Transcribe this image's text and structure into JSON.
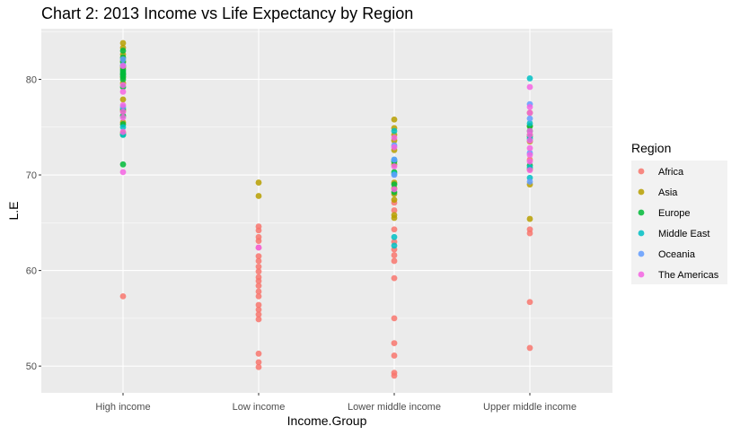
{
  "chart_data": {
    "type": "scatter",
    "title": "Chart 2: 2013 Income vs Life Expectancy by Region",
    "xlabel": "Income.Group",
    "ylabel": "L.E",
    "categories": [
      "High income",
      "Low income",
      "Lower middle income",
      "Upper middle income"
    ],
    "yticks": [
      50,
      60,
      70,
      80
    ],
    "ylim": [
      47.2,
      85.3
    ],
    "grid": true,
    "legend": {
      "title": "Region",
      "placement": "right"
    },
    "series": [
      {
        "name": "Africa",
        "color": "#F8766D",
        "points": [
          [
            "High income",
            57.3
          ],
          [
            "Low income",
            64.6
          ],
          [
            "Low income",
            64.2
          ],
          [
            "Low income",
            63.5
          ],
          [
            "Low income",
            63.1
          ],
          [
            "Low income",
            62.4
          ],
          [
            "Low income",
            61.5
          ],
          [
            "Low income",
            61.0
          ],
          [
            "Low income",
            60.4
          ],
          [
            "Low income",
            59.9
          ],
          [
            "Low income",
            59.3
          ],
          [
            "Low income",
            58.9
          ],
          [
            "Low income",
            58.4
          ],
          [
            "Low income",
            57.8
          ],
          [
            "Low income",
            57.3
          ],
          [
            "Low income",
            56.4
          ],
          [
            "Low income",
            55.9
          ],
          [
            "Low income",
            55.4
          ],
          [
            "Low income",
            54.9
          ],
          [
            "Low income",
            51.3
          ],
          [
            "Low income",
            50.4
          ],
          [
            "Low income",
            49.9
          ],
          [
            "Lower middle income",
            67.1
          ],
          [
            "Lower middle income",
            66.3
          ],
          [
            "Lower middle income",
            64.3
          ],
          [
            "Lower middle income",
            63.0
          ],
          [
            "Lower middle income",
            62.2
          ],
          [
            "Lower middle income",
            61.6
          ],
          [
            "Lower middle income",
            61.0
          ],
          [
            "Lower middle income",
            59.2
          ],
          [
            "Lower middle income",
            55.0
          ],
          [
            "Lower middle income",
            52.4
          ],
          [
            "Lower middle income",
            51.1
          ],
          [
            "Lower middle income",
            49.3
          ],
          [
            "Lower middle income",
            49.0
          ],
          [
            "Upper middle income",
            71.6
          ],
          [
            "Upper middle income",
            64.3
          ],
          [
            "Upper middle income",
            63.9
          ],
          [
            "Upper middle income",
            56.7
          ],
          [
            "Upper middle income",
            51.9
          ]
        ]
      },
      {
        "name": "Asia",
        "color": "#B79F00",
        "points": [
          [
            "High income",
            83.8
          ],
          [
            "High income",
            83.3
          ],
          [
            "High income",
            82.6
          ],
          [
            "High income",
            81.9
          ],
          [
            "High income",
            81.2
          ],
          [
            "High income",
            80.2
          ],
          [
            "High income",
            79.6
          ],
          [
            "High income",
            77.9
          ],
          [
            "High income",
            76.7
          ],
          [
            "High income",
            75.5
          ],
          [
            "High income",
            74.4
          ],
          [
            "Low income",
            69.2
          ],
          [
            "Low income",
            67.8
          ],
          [
            "Lower middle income",
            75.8
          ],
          [
            "Lower middle income",
            74.9
          ],
          [
            "Lower middle income",
            74.2
          ],
          [
            "Lower middle income",
            73.6
          ],
          [
            "Lower middle income",
            72.6
          ],
          [
            "Lower middle income",
            71.1
          ],
          [
            "Lower middle income",
            69.2
          ],
          [
            "Lower middle income",
            68.6
          ],
          [
            "Lower middle income",
            68.0
          ],
          [
            "Lower middle income",
            67.4
          ],
          [
            "Lower middle income",
            65.8
          ],
          [
            "Lower middle income",
            65.5
          ],
          [
            "Upper middle income",
            76.5
          ],
          [
            "Upper middle income",
            75.1
          ],
          [
            "Upper middle income",
            74.2
          ],
          [
            "Upper middle income",
            73.5
          ],
          [
            "Upper middle income",
            70.6
          ],
          [
            "Upper middle income",
            69.0
          ],
          [
            "Upper middle income",
            65.4
          ]
        ]
      },
      {
        "name": "Europe",
        "color": "#00BA38",
        "points": [
          [
            "High income",
            83.0
          ],
          [
            "High income",
            82.3
          ],
          [
            "High income",
            81.8
          ],
          [
            "High income",
            81.4
          ],
          [
            "High income",
            81.0
          ],
          [
            "High income",
            80.8
          ],
          [
            "High income",
            80.6
          ],
          [
            "High income",
            80.5
          ],
          [
            "High income",
            80.3
          ],
          [
            "High income",
            80.0
          ],
          [
            "High income",
            79.2
          ],
          [
            "High income",
            76.9
          ],
          [
            "High income",
            76.2
          ],
          [
            "High income",
            75.3
          ],
          [
            "High income",
            74.2
          ],
          [
            "High income",
            71.1
          ],
          [
            "Lower middle income",
            71.4
          ],
          [
            "Lower middle income",
            70.3
          ],
          [
            "Lower middle income",
            69.0
          ],
          [
            "Lower middle income",
            68.2
          ],
          [
            "Upper middle income",
            75.1
          ],
          [
            "Upper middle income",
            74.6
          ],
          [
            "Upper middle income",
            74.0
          ],
          [
            "Upper middle income",
            71.0
          ]
        ]
      },
      {
        "name": "Middle East",
        "color": "#00BFC4",
        "points": [
          [
            "High income",
            75.0
          ],
          [
            "High income",
            74.2
          ],
          [
            "Lower middle income",
            74.6
          ],
          [
            "Lower middle income",
            71.6
          ],
          [
            "Lower middle income",
            70.1
          ],
          [
            "Lower middle income",
            63.5
          ],
          [
            "Lower middle income",
            62.6
          ],
          [
            "Upper middle income",
            80.1
          ],
          [
            "Upper middle income",
            75.4
          ],
          [
            "Upper middle income",
            73.8
          ],
          [
            "Upper middle income",
            70.8
          ],
          [
            "Upper middle income",
            69.7
          ]
        ]
      },
      {
        "name": "Oceania",
        "color": "#619CFF",
        "points": [
          [
            "High income",
            82.1
          ],
          [
            "High income",
            81.5
          ],
          [
            "High income",
            77.1
          ],
          [
            "Lower middle income",
            73.1
          ],
          [
            "Lower middle income",
            71.6
          ],
          [
            "Lower middle income",
            70.0
          ],
          [
            "Upper middle income",
            77.4
          ],
          [
            "Upper middle income",
            75.9
          ],
          [
            "Upper middle income",
            72.3
          ],
          [
            "Upper middle income",
            69.3
          ]
        ]
      },
      {
        "name": "The Americas",
        "color": "#F564E3",
        "points": [
          [
            "High income",
            81.4
          ],
          [
            "High income",
            79.4
          ],
          [
            "High income",
            78.7
          ],
          [
            "High income",
            77.3
          ],
          [
            "High income",
            76.6
          ],
          [
            "High income",
            76.0
          ],
          [
            "High income",
            74.5
          ],
          [
            "High income",
            70.3
          ],
          [
            "Low income",
            62.4
          ],
          [
            "Lower middle income",
            73.9
          ],
          [
            "Lower middle income",
            72.9
          ],
          [
            "Lower middle income",
            70.9
          ],
          [
            "Lower middle income",
            68.5
          ],
          [
            "Upper middle income",
            79.2
          ],
          [
            "Upper middle income",
            77.1
          ],
          [
            "Upper middle income",
            76.5
          ],
          [
            "Upper middle income",
            74.6
          ],
          [
            "Upper middle income",
            74.2
          ],
          [
            "Upper middle income",
            73.6
          ],
          [
            "Upper middle income",
            72.8
          ],
          [
            "Upper middle income",
            72.1
          ],
          [
            "Upper middle income",
            71.4
          ],
          [
            "Upper middle income",
            70.5
          ]
        ]
      }
    ]
  }
}
